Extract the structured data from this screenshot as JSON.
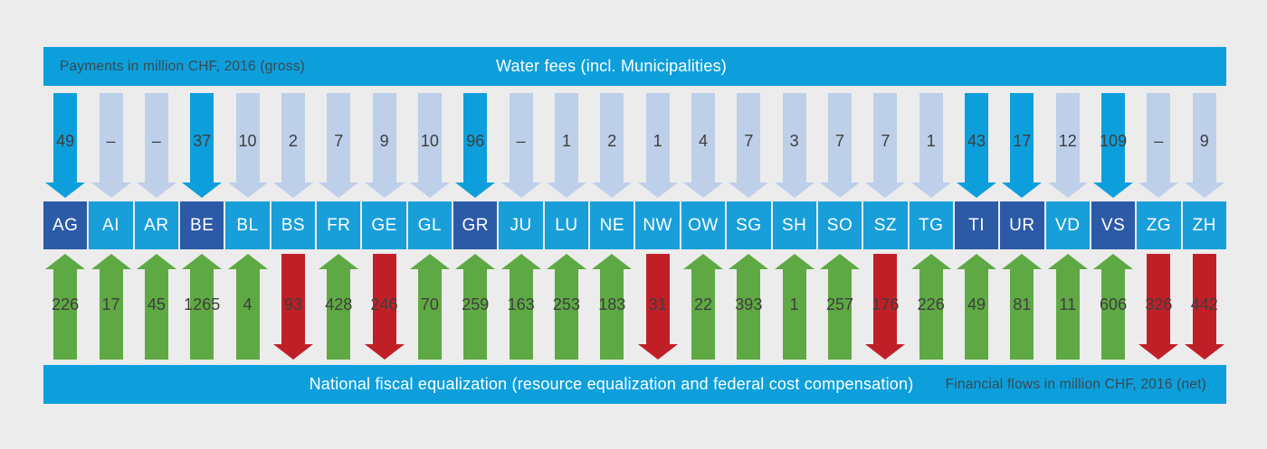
{
  "top_bar": {
    "left_label": "Payments in million CHF, 2016 (gross)",
    "title": "Water fees (incl. Municipalities)"
  },
  "bottom_bar": {
    "title": "National fiscal equalization (resource equalization and federal cost compensation)",
    "right_label": "Financial flows in million CHF, 2016 (net)"
  },
  "colors": {
    "background": "#ececec",
    "bar_blue": "#0d9fdc",
    "canton_light_blue": "#189fd9",
    "canton_dark_blue": "#2c5aa7",
    "fee_arrow_pale": "#becfea",
    "fee_arrow_bright": "#0d9fdc",
    "equalization_receive_green": "#5fa944",
    "equalization_pay_red": "#c11f28",
    "value_text": "#3e3e3d"
  },
  "legend_semantics": {
    "down_arrow": "water fee payment to canton (gross)",
    "bright_blue_arrow_and_dark_box": "major water-fee receiving canton",
    "green_up_arrow": "canton receives from national fiscal equalization",
    "red_down_arrow": "canton pays into national fiscal equalization"
  },
  "cantons": [
    {
      "code": "AG",
      "fee": "49",
      "fee_bright": true,
      "box_dark": true,
      "eq": "226",
      "eq_dir": "in"
    },
    {
      "code": "AI",
      "fee": "–",
      "fee_bright": false,
      "box_dark": false,
      "eq": "17",
      "eq_dir": "in"
    },
    {
      "code": "AR",
      "fee": "–",
      "fee_bright": false,
      "box_dark": false,
      "eq": "45",
      "eq_dir": "in"
    },
    {
      "code": "BE",
      "fee": "37",
      "fee_bright": true,
      "box_dark": true,
      "eq": "1265",
      "eq_dir": "in"
    },
    {
      "code": "BL",
      "fee": "10",
      "fee_bright": false,
      "box_dark": false,
      "eq": "4",
      "eq_dir": "in"
    },
    {
      "code": "BS",
      "fee": "2",
      "fee_bright": false,
      "box_dark": false,
      "eq": "93",
      "eq_dir": "out"
    },
    {
      "code": "FR",
      "fee": "7",
      "fee_bright": false,
      "box_dark": false,
      "eq": "428",
      "eq_dir": "in"
    },
    {
      "code": "GE",
      "fee": "9",
      "fee_bright": false,
      "box_dark": false,
      "eq": "246",
      "eq_dir": "out"
    },
    {
      "code": "GL",
      "fee": "10",
      "fee_bright": false,
      "box_dark": false,
      "eq": "70",
      "eq_dir": "in"
    },
    {
      "code": "GR",
      "fee": "96",
      "fee_bright": true,
      "box_dark": true,
      "eq": "259",
      "eq_dir": "in"
    },
    {
      "code": "JU",
      "fee": "–",
      "fee_bright": false,
      "box_dark": false,
      "eq": "163",
      "eq_dir": "in"
    },
    {
      "code": "LU",
      "fee": "1",
      "fee_bright": false,
      "box_dark": false,
      "eq": "253",
      "eq_dir": "in"
    },
    {
      "code": "NE",
      "fee": "2",
      "fee_bright": false,
      "box_dark": false,
      "eq": "183",
      "eq_dir": "in"
    },
    {
      "code": "NW",
      "fee": "1",
      "fee_bright": false,
      "box_dark": false,
      "eq": "31",
      "eq_dir": "out"
    },
    {
      "code": "OW",
      "fee": "4",
      "fee_bright": false,
      "box_dark": false,
      "eq": "22",
      "eq_dir": "in"
    },
    {
      "code": "SG",
      "fee": "7",
      "fee_bright": false,
      "box_dark": false,
      "eq": "393",
      "eq_dir": "in"
    },
    {
      "code": "SH",
      "fee": "3",
      "fee_bright": false,
      "box_dark": false,
      "eq": "1",
      "eq_dir": "in"
    },
    {
      "code": "SO",
      "fee": "7",
      "fee_bright": false,
      "box_dark": false,
      "eq": "257",
      "eq_dir": "in"
    },
    {
      "code": "SZ",
      "fee": "7",
      "fee_bright": false,
      "box_dark": false,
      "eq": "176",
      "eq_dir": "out"
    },
    {
      "code": "TG",
      "fee": "1",
      "fee_bright": false,
      "box_dark": false,
      "eq": "226",
      "eq_dir": "in"
    },
    {
      "code": "TI",
      "fee": "43",
      "fee_bright": true,
      "box_dark": true,
      "eq": "49",
      "eq_dir": "in"
    },
    {
      "code": "UR",
      "fee": "17",
      "fee_bright": true,
      "box_dark": true,
      "eq": "81",
      "eq_dir": "in"
    },
    {
      "code": "VD",
      "fee": "12",
      "fee_bright": false,
      "box_dark": false,
      "eq": "11",
      "eq_dir": "in"
    },
    {
      "code": "VS",
      "fee": "109",
      "fee_bright": true,
      "box_dark": true,
      "eq": "606",
      "eq_dir": "in"
    },
    {
      "code": "ZG",
      "fee": "–",
      "fee_bright": false,
      "box_dark": false,
      "eq": "326",
      "eq_dir": "out"
    },
    {
      "code": "ZH",
      "fee": "9",
      "fee_bright": false,
      "box_dark": false,
      "eq": "442",
      "eq_dir": "out"
    }
  ],
  "chart_data": {
    "type": "table",
    "title": "Water fees (incl. Municipalities)",
    "subtitle": "National fiscal equalization (resource equalization and federal cost compensation)",
    "units_top": "Payments in million CHF, 2016 (gross)",
    "units_bottom": "Financial flows in million CHF, 2016 (net)",
    "categories": [
      "AG",
      "AI",
      "AR",
      "BE",
      "BL",
      "BS",
      "FR",
      "GE",
      "GL",
      "GR",
      "JU",
      "LU",
      "NE",
      "NW",
      "OW",
      "SG",
      "SH",
      "SO",
      "SZ",
      "TG",
      "TI",
      "UR",
      "VD",
      "VS",
      "ZG",
      "ZH"
    ],
    "series": [
      {
        "name": "Water fees (incl. Municipalities), gross, million CHF 2016",
        "values": [
          49,
          null,
          null,
          37,
          10,
          2,
          7,
          9,
          10,
          96,
          null,
          1,
          2,
          1,
          4,
          7,
          3,
          7,
          7,
          1,
          43,
          17,
          12,
          109,
          null,
          9
        ]
      },
      {
        "name": "National fiscal equalization, net, million CHF 2016 (positive = canton receives, negative = canton pays)",
        "values": [
          226,
          17,
          45,
          1265,
          4,
          -93,
          428,
          -246,
          70,
          259,
          163,
          253,
          183,
          -31,
          22,
          393,
          1,
          257,
          -176,
          226,
          49,
          81,
          11,
          606,
          -326,
          -442
        ]
      }
    ],
    "legend_position": "none",
    "grid": false
  }
}
